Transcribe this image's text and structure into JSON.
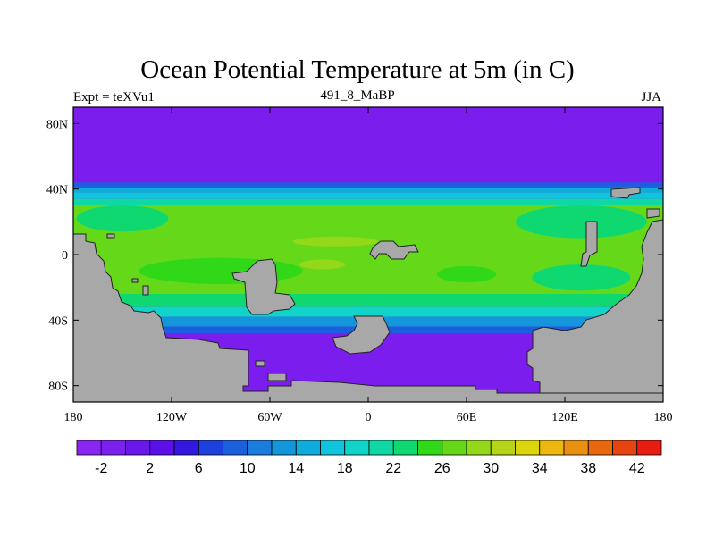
{
  "chart_data": {
    "type": "heatmap",
    "title": "Ocean Potential Temperature at 5m (in C)",
    "subtitle_left": "Expt = teXVu1",
    "subtitle_center": "491_8_MaBP",
    "subtitle_right": "JJA",
    "x_range": [
      -180,
      180
    ],
    "y_range": [
      -90,
      90
    ],
    "x_ticks": [
      {
        "value": -180,
        "label": "180"
      },
      {
        "value": -120,
        "label": "120W"
      },
      {
        "value": -60,
        "label": "60W"
      },
      {
        "value": 0,
        "label": "0"
      },
      {
        "value": 60,
        "label": "60E"
      },
      {
        "value": 120,
        "label": "120E"
      },
      {
        "value": 180,
        "label": "180"
      }
    ],
    "y_ticks": [
      {
        "value": 80,
        "label": "80N"
      },
      {
        "value": 40,
        "label": "40N"
      },
      {
        "value": 0,
        "label": "0"
      },
      {
        "value": -40,
        "label": "40S"
      },
      {
        "value": -80,
        "label": "80S"
      }
    ],
    "colorbar": {
      "min": -4,
      "max": 44,
      "step": 2,
      "labels": [
        "-2",
        "2",
        "6",
        "10",
        "14",
        "18",
        "22",
        "26",
        "30",
        "34",
        "38",
        "42"
      ],
      "label_values": [
        -2,
        2,
        6,
        10,
        14,
        18,
        22,
        26,
        30,
        34,
        38,
        42
      ],
      "colors": [
        "#8a26f0",
        "#7c20ee",
        "#6a17ea",
        "#5a10e6",
        "#3218e0",
        "#1e40dc",
        "#1a60dc",
        "#1a7cdc",
        "#1496dc",
        "#10acdc",
        "#10c4dc",
        "#10d4c8",
        "#10d8a4",
        "#10d870",
        "#30d818",
        "#66d81a",
        "#94d81a",
        "#b8d41a",
        "#dcd40c",
        "#ecb810",
        "#e89010",
        "#e86810",
        "#e84410",
        "#e81c10"
      ]
    },
    "temperature_zones": [
      {
        "region": "north of 43N",
        "value": -2
      },
      {
        "region": "44N-40N",
        "value": 8
      },
      {
        "region": "40N-32N",
        "value": 16
      },
      {
        "region": "30N-25S",
        "value": 27
      },
      {
        "region": "central max",
        "value": 29
      },
      {
        "region": "25S-35S",
        "value": 20
      },
      {
        "region": "35S-45S",
        "value": 12
      },
      {
        "region": "south of 48S",
        "value": -2
      }
    ],
    "land_color": "#a8a8a8",
    "ocean_background": "#7a1ded"
  }
}
